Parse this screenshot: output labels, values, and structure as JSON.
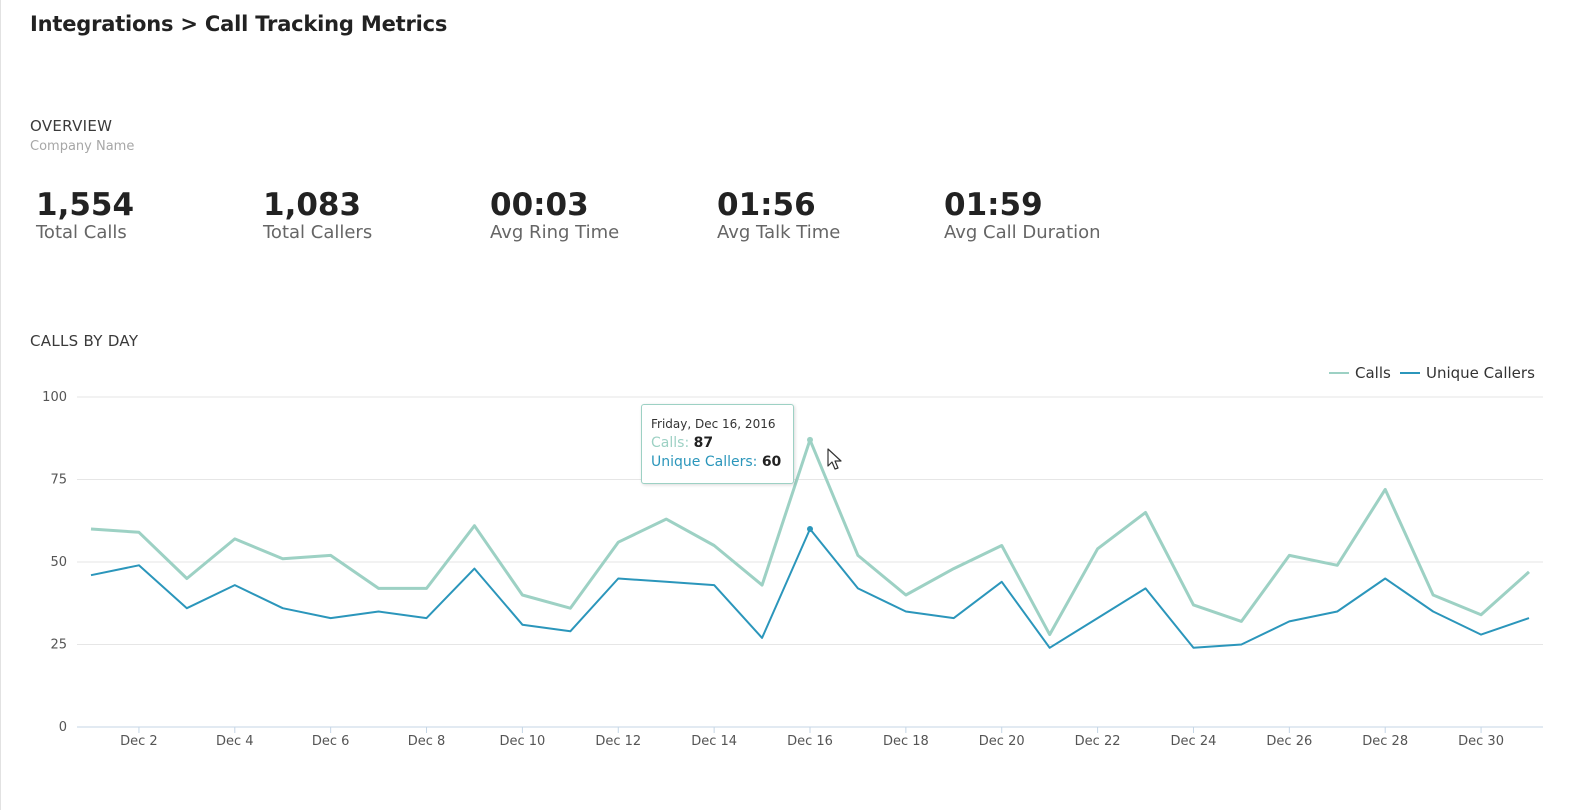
{
  "page": {
    "title": "Integrations > Call Tracking Metrics"
  },
  "overview": {
    "heading": "OVERVIEW",
    "company": "Company Name",
    "stats": [
      {
        "value": "1,554",
        "label": "Total Calls"
      },
      {
        "value": "1,083",
        "label": "Total Callers"
      },
      {
        "value": "00:03",
        "label": "Avg Ring Time"
      },
      {
        "value": "01:56",
        "label": "Avg Talk Time"
      },
      {
        "value": "01:59",
        "label": "Avg Call Duration"
      }
    ]
  },
  "calls_by_day": {
    "heading": "CALLS BY DAY"
  },
  "tooltip": {
    "date": "Friday, Dec 16, 2016",
    "calls_label": "Calls",
    "calls_value": "87",
    "unique_label": "Unique Callers",
    "unique_value": "60"
  },
  "colors": {
    "calls": "#9dd1c4",
    "unique_callers": "#2b96bb",
    "grid": "#e6e6e6",
    "axis": "#c5d6e6"
  },
  "chart_data": {
    "type": "line",
    "x": [
      1,
      2,
      3,
      4,
      5,
      6,
      7,
      8,
      9,
      10,
      11,
      12,
      13,
      14,
      15,
      16,
      17,
      18,
      19,
      20,
      21,
      22,
      23,
      24,
      25,
      26,
      27,
      28,
      29,
      30,
      31
    ],
    "x_tick_labels": [
      "Dec 2",
      "Dec 4",
      "Dec 6",
      "Dec 8",
      "Dec 10",
      "Dec 12",
      "Dec 14",
      "Dec 16",
      "Dec 18",
      "Dec 20",
      "Dec 22",
      "Dec 24",
      "Dec 26",
      "Dec 28",
      "Dec 30"
    ],
    "x_tick_days": [
      2,
      4,
      6,
      8,
      10,
      12,
      14,
      16,
      18,
      20,
      22,
      24,
      26,
      28,
      30
    ],
    "ylim": [
      0,
      100
    ],
    "y_ticks": [
      0,
      25,
      50,
      75,
      100
    ],
    "grid": true,
    "legend": "top-right",
    "series": [
      {
        "name": "Calls",
        "values": [
          60,
          59,
          45,
          57,
          51,
          52,
          42,
          42,
          61,
          40,
          36,
          56,
          63,
          55,
          43,
          87,
          52,
          40,
          48,
          55,
          28,
          54,
          65,
          37,
          32,
          52,
          49,
          72,
          40,
          34,
          47
        ]
      },
      {
        "name": "Unique Callers",
        "values": [
          46,
          49,
          36,
          43,
          36,
          33,
          35,
          33,
          48,
          31,
          29,
          45,
          44,
          43,
          27,
          60,
          42,
          35,
          33,
          44,
          24,
          33,
          42,
          24,
          25,
          32,
          35,
          45,
          35,
          28,
          33
        ]
      }
    ]
  }
}
